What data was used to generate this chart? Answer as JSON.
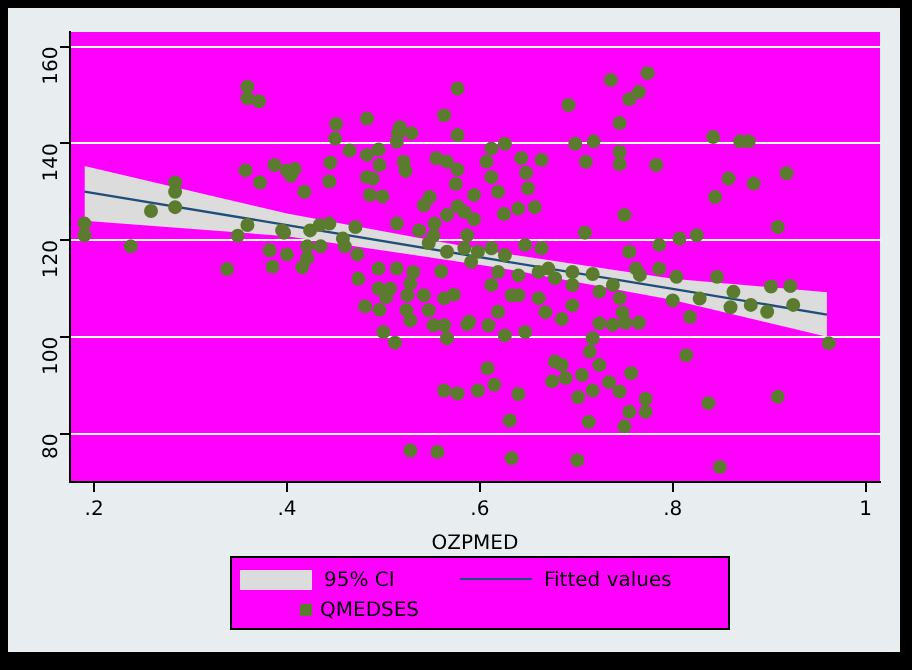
{
  "chart_data": {
    "type": "scatter",
    "xlabel": "OZPMED",
    "xlim": [
      0.175,
      1.015
    ],
    "ylim": [
      70,
      163
    ],
    "xticks": [
      {
        "value": 0.2,
        "label": ".2"
      },
      {
        "value": 0.4,
        "label": ".4"
      },
      {
        "value": 0.6,
        "label": ".6"
      },
      {
        "value": 0.8,
        "label": ".8"
      },
      1
    ],
    "yticks": [
      80,
      100,
      120,
      140,
      160
    ],
    "grid": "y",
    "legend": "bottom",
    "annotations": [
      "95% CI"
    ],
    "series": [
      {
        "name": "Fitted values",
        "type": "line",
        "color": "#1f4e79",
        "x": [
          0.19,
          0.4,
          0.62,
          0.8,
          0.96
        ],
        "values": [
          130,
          123.1,
          115.8,
          109.9,
          104.6
        ],
        "lower": [
          124,
          120.8,
          114.3,
          107.6,
          100
        ],
        "upper": [
          135.3,
          125.5,
          117.4,
          112,
          109.2
        ]
      },
      {
        "name": "QMEDSES",
        "type": "scatter",
        "marker": "circle",
        "color": "#5b7b2f",
        "x": [
          0.19,
          0.19,
          0.238,
          0.259,
          0.284,
          0.284,
          0.284,
          0.338,
          0.349,
          0.359,
          0.359,
          0.371,
          0.357,
          0.359,
          0.372,
          0.382,
          0.385,
          0.387,
          0.4,
          0.404,
          0.408,
          0.395,
          0.397,
          0.4,
          0.418,
          0.416,
          0.421,
          0.421,
          0.424,
          0.434,
          0.435,
          0.444,
          0.445,
          0.451,
          0.45,
          0.444,
          0.458,
          0.46,
          0.465,
          0.471,
          0.473,
          0.474,
          0.483,
          0.483,
          0.483,
          0.489,
          0.495,
          0.496,
          0.486,
          0.499,
          0.481,
          0.495,
          0.495,
          0.496,
          0.5,
          0.512,
          0.503,
          0.507,
          0.514,
          0.517,
          0.514,
          0.515,
          0.529,
          0.521,
          0.523,
          0.514,
          0.525,
          0.524,
          0.528,
          0.531,
          0.528,
          0.537,
          0.542,
          0.548,
          0.552,
          0.547,
          0.555,
          0.542,
          0.547,
          0.56,
          0.528,
          0.556,
          0.563,
          0.577,
          0.577,
          0.563,
          0.577,
          0.552,
          0.563,
          0.566,
          0.573,
          0.577,
          0.584,
          0.587,
          0.591,
          0.587,
          0.598,
          0.566,
          0.612,
          0.626,
          0.607,
          0.612,
          0.619,
          0.575,
          0.594,
          0.643,
          0.664,
          0.648,
          0.65,
          0.64,
          0.657,
          0.625,
          0.566,
          0.577,
          0.594,
          0.553,
          0.598,
          0.612,
          0.626,
          0.566,
          0.584,
          0.647,
          0.664,
          0.671,
          0.678,
          0.696,
          0.717,
          0.738,
          0.755,
          0.762,
          0.786,
          0.807,
          0.825,
          0.786,
          0.804,
          0.8,
          0.828,
          0.846,
          0.863,
          0.86,
          0.881,
          0.898,
          0.902,
          0.922,
          0.925,
          0.962,
          0.818,
          0.748,
          0.765,
          0.751,
          0.738,
          0.724,
          0.717,
          0.714,
          0.696,
          0.685,
          0.668,
          0.647,
          0.626,
          0.609,
          0.589,
          0.563,
          0.612,
          0.64,
          0.661,
          0.615,
          0.608,
          0.64,
          0.631,
          0.633,
          0.678,
          0.685,
          0.675,
          0.689,
          0.706,
          0.724,
          0.702,
          0.717,
          0.734,
          0.745,
          0.755,
          0.772,
          0.772,
          0.75,
          0.713,
          0.701,
          0.757,
          0.814,
          0.837,
          0.909,
          0.849,
          0.736,
          0.774,
          0.765,
          0.755,
          0.692,
          0.745,
          0.699,
          0.718,
          0.71,
          0.745,
          0.745,
          0.783,
          0.842,
          0.87,
          0.879,
          0.858,
          0.884,
          0.918,
          0.844,
          0.909,
          0.75,
          0.709,
          0.661,
          0.64,
          0.619,
          0.633,
          0.696,
          0.724,
          0.745,
          0.766,
          0.619
        ],
        "values": [
          123.4,
          121,
          118.7,
          126,
          131.9,
          130,
          126.8,
          114,
          120.9,
          151.7,
          149.3,
          148.7,
          134.4,
          123.1,
          131.9,
          117.9,
          114.5,
          135.5,
          134.4,
          133.3,
          134.7,
          122,
          121.5,
          117,
          130,
          114.4,
          116.3,
          118.7,
          122,
          123.1,
          118.7,
          132.1,
          136,
          144,
          141,
          123.4,
          120.3,
          118.7,
          138.5,
          122.7,
          117,
          112,
          145.1,
          137.6,
          133,
          132.7,
          138.7,
          135.5,
          129.3,
          129,
          106.3,
          114.1,
          110,
          105.6,
          101,
          98.8,
          108.2,
          110,
          114.1,
          143.3,
          140.3,
          142,
          142.1,
          136.2,
          134.3,
          123.4,
          108.6,
          105.5,
          103.4,
          113.4,
          111,
          122,
          127.2,
          128.9,
          120.9,
          119.4,
          136.9,
          108.6,
          105.5,
          113.5,
          76.5,
          76.2,
          145.8,
          141.7,
          151.3,
          88.9,
          88.3,
          102.4,
          102.4,
          99.7,
          108.7,
          134.6,
          125.8,
          121,
          115.5,
          102.6,
          88.9,
          136.2,
          138.9,
          139.9,
          136.2,
          133,
          130,
          131.6,
          129.3,
          136.9,
          136.6,
          133.9,
          130.7,
          126.5,
          126.8,
          125.4,
          125.2,
          127,
          124.3,
          123.4,
          117.6,
          118.3,
          116.9,
          117.6,
          118.3,
          119,
          118.3,
          114.1,
          112.1,
          113.4,
          113,
          110.7,
          117.6,
          114.1,
          119,
          120.3,
          121,
          114.1,
          112.4,
          107.5,
          107.9,
          112.4,
          109.3,
          106.1,
          106.6,
          105.2,
          110.4,
          110.5,
          106.6,
          98.7,
          104.1,
          105,
          102.9,
          102.9,
          102.5,
          102.8,
          99.7,
          96.9,
          106.5,
          103.7,
          105.1,
          101,
          100.3,
          102.4,
          103.1,
          108,
          110.7,
          108.6,
          108,
          90.1,
          93.5,
          88.2,
          82.7,
          74.9,
          94.9,
          94.2,
          90.8,
          91.5,
          92.1,
          94.2,
          87.5,
          88.9,
          90.6,
          88.7,
          84.5,
          87.2,
          84.5,
          81.5,
          82.4,
          74.5,
          92.5,
          96.2,
          86.3,
          87.6,
          73.1,
          153.1,
          154.5,
          150.6,
          149.1,
          147.9,
          144.2,
          139.9,
          140.4,
          136.2,
          138.2,
          135.7,
          135.5,
          141.3,
          140.4,
          140.4,
          132.7,
          131.7,
          133.8,
          128.9,
          122.7,
          125.2,
          121.5,
          113.4,
          112.7,
          113.4,
          108.6,
          110.7,
          109.3,
          108,
          112.8,
          105.2
        ]
      }
    ]
  }
}
